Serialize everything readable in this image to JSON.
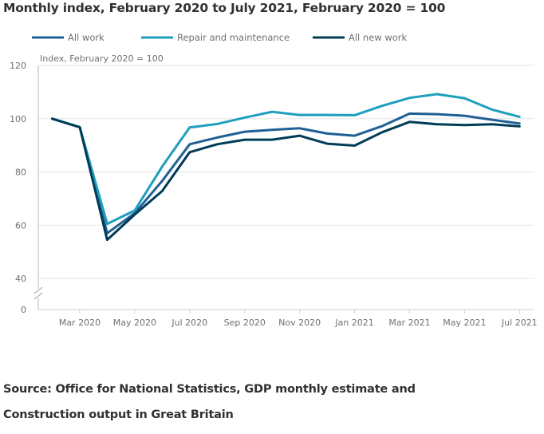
{
  "title": "Monthly index, February 2020 to July 2021, February 2020 = 100",
  "source_line1": "Source: Office for National Statistics, GDP monthly estimate and",
  "source_line2": "Construction output in Great Britain",
  "chart_data": {
    "type": "line",
    "title": "Monthly index, February 2020 to July 2021, February 2020 = 100",
    "xlabel": "",
    "ylabel": "Index, February 2020 = 100",
    "x": [
      "Feb 2020",
      "Mar 2020",
      "Apr 2020",
      "May 2020",
      "Jun 2020",
      "Jul 2020",
      "Aug 2020",
      "Sep 2020",
      "Oct 2020",
      "Nov 2020",
      "Dec 2020",
      "Jan 2021",
      "Feb 2021",
      "Mar 2021",
      "Apr 2021",
      "May 2021",
      "Jun 2021",
      "Jul 2021"
    ],
    "x_tick_labels": [
      "Mar 2020",
      "May 2020",
      "Jul 2020",
      "Sep 2020",
      "Nov 2020",
      "Jan 2021",
      "Mar 2021",
      "May 2021",
      "Jul 2021"
    ],
    "y_tick_labels": [
      "0",
      "40",
      "60",
      "80",
      "100",
      "120"
    ],
    "ylim": [
      40,
      120
    ],
    "y_axis_break": true,
    "grid": true,
    "legend_position": "top",
    "series": [
      {
        "name": "All work",
        "color": "#206095",
        "values": [
          100,
          96.8,
          57.0,
          64.5,
          76.6,
          90.4,
          92.9,
          95.1,
          95.8,
          96.4,
          94.4,
          93.6,
          97.2,
          101.9,
          101.7,
          101.1,
          99.6,
          98.2
        ]
      },
      {
        "name": "Repair and maintenance",
        "color": "#1f9fbd",
        "values": [
          100,
          96.8,
          60.5,
          65.5,
          82.0,
          96.7,
          98.0,
          100.4,
          102.6,
          101.4,
          101.4,
          101.3,
          104.8,
          107.8,
          109.2,
          107.7,
          103.4,
          100.7
        ]
      },
      {
        "name": "All new work",
        "color": "#003c57",
        "values": [
          100,
          96.8,
          54.5,
          64.0,
          72.8,
          87.4,
          90.4,
          92.1,
          92.1,
          93.6,
          90.6,
          89.9,
          94.9,
          98.8,
          97.9,
          97.6,
          97.9,
          97.1
        ]
      }
    ]
  }
}
